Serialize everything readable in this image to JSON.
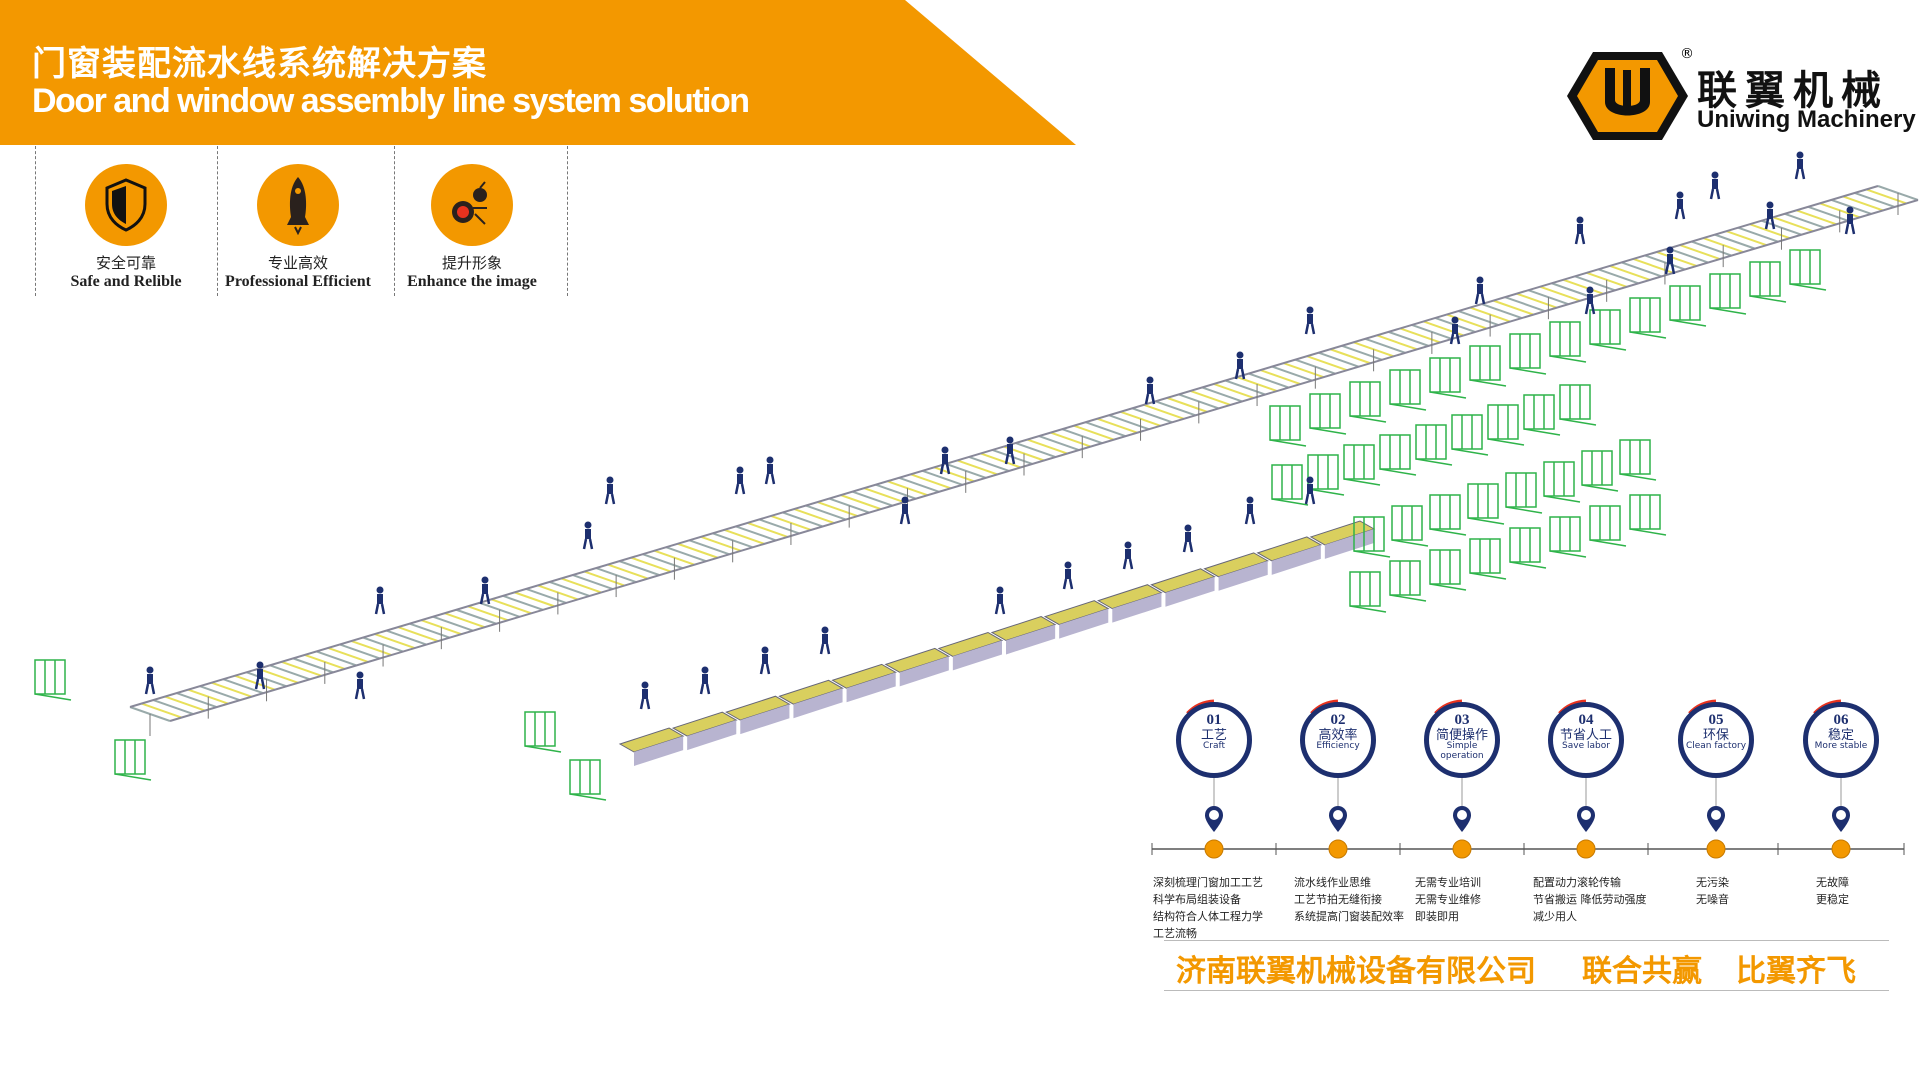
{
  "header": {
    "title_cn": "门窗装配流水线系统解决方案",
    "title_en": "Door and window assembly line system solution",
    "accent": "#f39800"
  },
  "features": [
    {
      "icon": "shield-icon",
      "label_cn": "安全可靠",
      "label_en": "Safe and Relible"
    },
    {
      "icon": "rocket-icon",
      "label_cn": "专业高效",
      "label_en": "Professional Efficient"
    },
    {
      "icon": "gear-circuit-icon",
      "label_cn": "提升形象",
      "label_en": "Enhance the image"
    }
  ],
  "logo": {
    "name_cn": "联翼机械",
    "name_en": "Uniwing Machinery",
    "registered": "®"
  },
  "steps": [
    {
      "num": "01",
      "cn": "工艺",
      "en": "Craft",
      "desc": [
        "深刻梳理门窗加工工艺",
        "科学布局组装设备",
        "结构符合人体工程力学",
        "工艺流畅"
      ]
    },
    {
      "num": "02",
      "cn": "高效率",
      "en": "Efficiency",
      "desc": [
        "流水线作业思维",
        "工艺节拍无缝衔接",
        "系统提高门窗装配效率"
      ]
    },
    {
      "num": "03",
      "cn": "简便操作",
      "en": "Simple operation",
      "desc": [
        "无需专业培训",
        "无需专业维修",
        "即装即用"
      ]
    },
    {
      "num": "04",
      "cn": "节省人工",
      "en": "Save labor",
      "desc": [
        "配置动力滚轮传输",
        "节省搬运  降低劳动强度",
        "减少用人"
      ]
    },
    {
      "num": "05",
      "cn": "环保",
      "en": "Clean factory",
      "desc": [
        "无污染",
        "无噪音"
      ]
    },
    {
      "num": "06",
      "cn": "稳定",
      "en": "More stable",
      "desc": [
        "无故障",
        "更稳定"
      ]
    }
  ],
  "slogan": {
    "company": "济南联翼机械设备有限公司",
    "motto1": "联合共赢",
    "motto2": "比翼齐飞"
  },
  "colors": {
    "navy": "#1d2f6f",
    "orange": "#f39800",
    "red": "#e8321e",
    "green": "#2fb34a"
  }
}
